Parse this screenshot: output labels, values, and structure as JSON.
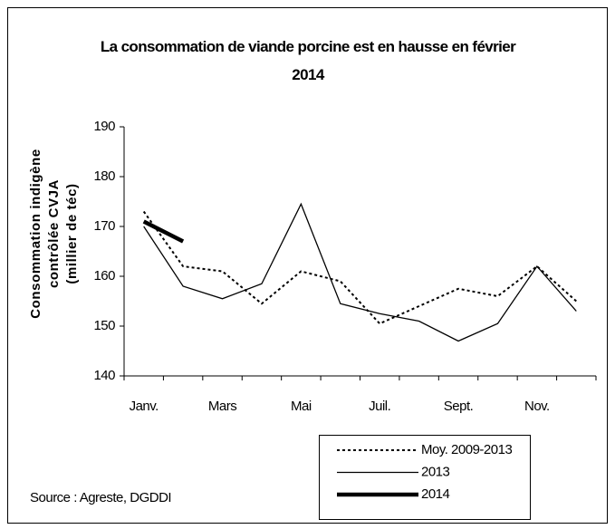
{
  "chart_data": {
    "type": "line",
    "title": "La consommation de viande porcine  est en  hausse en février 2014",
    "ylabel": [
      "Consommation indigène",
      "contrôlée CVJA",
      "(millier de téc)"
    ],
    "source": "Source : Agreste, DGDDI",
    "categories": [
      "Janv.",
      null,
      "Mars",
      null,
      "Mai",
      null,
      "Juil.",
      null,
      "Sept.",
      null,
      "Nov.",
      null
    ],
    "series": [
      {
        "name": "Moy. 2009-2013",
        "color": "#000000",
        "line_style": "dotted",
        "line_width": 2,
        "values": [
          173,
          162,
          161,
          154.5,
          161,
          159,
          150.5,
          154,
          157.5,
          156,
          162,
          155
        ]
      },
      {
        "name": "2013",
        "color": "#000000",
        "line_style": "solid",
        "line_width": 1.3,
        "values": [
          170,
          158,
          155.5,
          158.5,
          174.5,
          154.5,
          152.5,
          151,
          147,
          150.5,
          162,
          153
        ]
      },
      {
        "name": "2014",
        "color": "#000000",
        "line_style": "solid",
        "line_width": 4.5,
        "values": [
          171,
          167,
          null,
          null,
          null,
          null,
          null,
          null,
          null,
          null,
          null,
          null
        ]
      }
    ],
    "ylim": [
      140,
      190
    ],
    "yticks": [
      140,
      150,
      160,
      170,
      180,
      190
    ]
  }
}
